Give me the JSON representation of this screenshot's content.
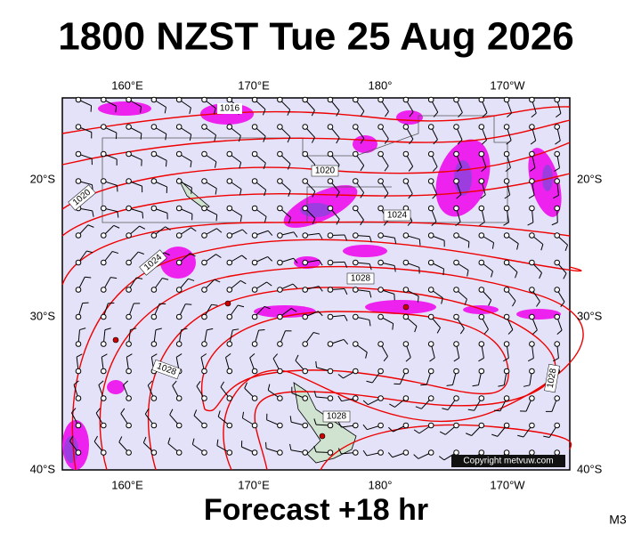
{
  "header": {
    "title": "1800 NZST Tue 25 Aug 2026"
  },
  "map": {
    "lon_labels": [
      "160°E",
      "170°E",
      "180°",
      "170°W"
    ],
    "lat_labels": [
      "20°S",
      "30°S",
      "40°S"
    ],
    "isobar_labels": [
      "1016",
      "1020",
      "1020",
      "1024",
      "1024",
      "1028",
      "1028",
      "1028",
      "1028"
    ],
    "copyright": "Copyright metvuw.com"
  },
  "footer": {
    "forecast": "Forecast +18 hr",
    "code": "M3"
  }
}
